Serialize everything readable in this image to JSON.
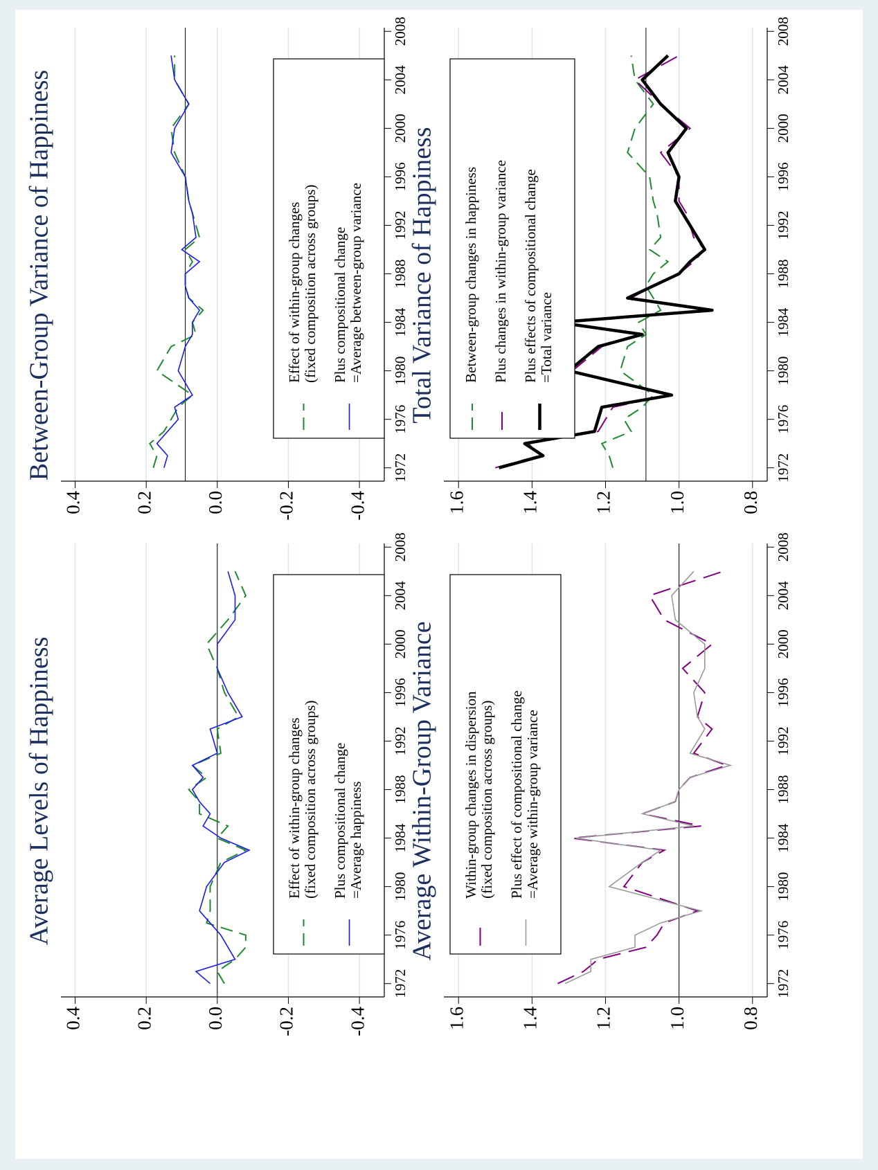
{
  "chart_data": [
    {
      "type": "line",
      "title": "Average Levels of Happiness",
      "x": [
        1972,
        1973,
        1974,
        1975,
        1976,
        1977,
        1978,
        1980,
        1982,
        1983,
        1984,
        1985,
        1986,
        1987,
        1988,
        1989,
        1990,
        1991,
        1993,
        1994,
        1996,
        1998,
        2000,
        2002,
        2004,
        2006
      ],
      "xlim": [
        1970.9,
        2008.3
      ],
      "xticks": [
        1972,
        1976,
        1980,
        1984,
        1988,
        1992,
        1996,
        2000,
        2004,
        2008
      ],
      "ylim": [
        -0.47,
        0.44
      ],
      "yticks": [
        0.4,
        0.2,
        {
          "value": 0,
          "label": "0.0"
        },
        -0.2,
        -0.4
      ],
      "grid": true,
      "hline": 0,
      "legend_position": "bottom",
      "series": [
        {
          "name": [
            "Effect of within-group changes",
            "(fixed composition across groups)"
          ],
          "color": "#1e8a2e",
          "line_style": "dashed",
          "values": [
            -0.02,
            0.0,
            -0.05,
            -0.08,
            -0.08,
            0.03,
            0.02,
            0.02,
            -0.01,
            -0.08,
            0.0,
            -0.03,
            0.05,
            0.05,
            0.08,
            0.03,
            0.07,
            -0.01,
            0.0,
            -0.06,
            -0.02,
            0.0,
            0.03,
            -0.03,
            -0.08,
            -0.05
          ]
        },
        {
          "name": [
            "Plus compositional change",
            "=Average happiness"
          ],
          "color": "#1a1aee",
          "line_style": "solid",
          "values": [
            0.02,
            0.06,
            -0.05,
            -0.03,
            -0.01,
            0.02,
            0.05,
            0.03,
            -0.02,
            -0.09,
            -0.01,
            0.04,
            0.02,
            0.05,
            0.07,
            0.04,
            0.07,
            0.0,
            0.02,
            -0.07,
            -0.03,
            0.0,
            0.0,
            -0.05,
            -0.05,
            -0.03
          ]
        }
      ]
    },
    {
      "type": "line",
      "title": "Between-Group Variance of Happiness",
      "x": [
        1972,
        1973,
        1974,
        1975,
        1976,
        1977,
        1978,
        1980,
        1982,
        1983,
        1984,
        1985,
        1986,
        1987,
        1988,
        1989,
        1990,
        1991,
        1993,
        1994,
        1996,
        1998,
        2000,
        2002,
        2004,
        2006
      ],
      "xlim": [
        1970.9,
        2008.3
      ],
      "xticks": [
        1972,
        1976,
        1980,
        1984,
        1988,
        1992,
        1996,
        2000,
        2004,
        2008
      ],
      "ylim": [
        -0.47,
        0.44
      ],
      "yticks": [
        0.4,
        0.2,
        {
          "value": 0,
          "label": "0.0"
        },
        -0.2,
        -0.4
      ],
      "grid": true,
      "hline": 0.09,
      "legend_position": "bottom",
      "series": [
        {
          "name": [
            "Effect of within-group changes",
            "(fixed composition across groups)"
          ],
          "color": "#1e8a2e",
          "line_style": "dashed",
          "values": [
            0.18,
            0.17,
            0.19,
            0.15,
            0.13,
            0.11,
            0.07,
            0.17,
            0.13,
            0.06,
            0.07,
            0.04,
            0.08,
            0.09,
            0.09,
            0.07,
            0.09,
            0.05,
            0.07,
            0.08,
            0.09,
            0.12,
            0.13,
            0.08,
            0.12,
            0.12
          ]
        },
        {
          "name": [
            "Plus compositional change",
            "=Average between-group variance"
          ],
          "color": "#1a1aee",
          "line_style": "solid",
          "values": [
            0.15,
            0.14,
            0.17,
            0.14,
            0.11,
            0.12,
            0.07,
            0.11,
            0.09,
            0.07,
            0.07,
            0.05,
            0.08,
            0.09,
            0.09,
            0.05,
            0.1,
            0.06,
            0.07,
            0.08,
            0.09,
            0.13,
            0.12,
            0.08,
            0.12,
            0.13
          ]
        }
      ]
    },
    {
      "type": "line",
      "title": "Average Within-Group Variance",
      "x": [
        1972,
        1973,
        1974,
        1975,
        1976,
        1977,
        1978,
        1980,
        1982,
        1983,
        1984,
        1985,
        1986,
        1987,
        1988,
        1989,
        1990,
        1991,
        1993,
        1994,
        1996,
        1998,
        2000,
        2002,
        2004,
        2006
      ],
      "xlim": [
        1970.9,
        2008.3
      ],
      "xticks": [
        1972,
        1976,
        1980,
        1984,
        1988,
        1992,
        1996,
        2000,
        2004,
        2008
      ],
      "ylim": [
        0.76,
        1.64
      ],
      "yticks": [
        1.6,
        1.4,
        1.2,
        {
          "value": 1,
          "label": "1.0"
        },
        0.8
      ],
      "grid": true,
      "hline": 1,
      "legend_position": "top",
      "series": [
        {
          "name": [
            "Within-group changes in dispersion",
            "(fixed composition across groups)"
          ],
          "color": "#800080",
          "line_style": "dashed",
          "values": [
            1.33,
            1.26,
            1.22,
            1.09,
            1.06,
            1.04,
            0.95,
            1.15,
            1.1,
            1.04,
            1.29,
            0.94,
            1.1,
            1.01,
            1.0,
            0.97,
            0.87,
            0.96,
            0.91,
            0.95,
            0.93,
            0.99,
            0.91,
            1.04,
            1.08,
            0.88
          ]
        },
        {
          "name": [
            "Plus effect of compositional change",
            "=Average within-group variance"
          ],
          "color": "#999999",
          "line_style": "solid",
          "values": [
            1.31,
            1.24,
            1.24,
            1.12,
            1.12,
            1.05,
            0.94,
            1.19,
            1.1,
            1.05,
            1.28,
            0.96,
            1.1,
            1.01,
            1.0,
            0.97,
            0.86,
            0.97,
            0.93,
            0.95,
            0.96,
            0.93,
            0.93,
            1.01,
            1.02,
            0.96
          ]
        }
      ]
    },
    {
      "type": "line",
      "title": "Total Variance of Happiness",
      "x": [
        1972,
        1973,
        1974,
        1975,
        1976,
        1977,
        1978,
        1980,
        1982,
        1983,
        1984,
        1985,
        1986,
        1987,
        1988,
        1989,
        1990,
        1991,
        1993,
        1994,
        1996,
        1998,
        2000,
        2002,
        2004,
        2006
      ],
      "xlim": [
        1970.9,
        2008.3
      ],
      "xticks": [
        1972,
        1976,
        1980,
        1984,
        1988,
        1992,
        1996,
        2000,
        2004,
        2008
      ],
      "ylim": [
        0.76,
        1.64
      ],
      "yticks": [
        1.6,
        1.4,
        1.2,
        {
          "value": 1,
          "label": "1.0"
        },
        0.8
      ],
      "grid": true,
      "hline": 1.09,
      "legend_position": "top",
      "series": [
        {
          "name": [
            "Between-group changes in happiness"
          ],
          "color": "#1e8a2e",
          "line_style": "dashed",
          "values": [
            1.18,
            1.19,
            1.21,
            1.13,
            1.15,
            1.1,
            1.07,
            1.16,
            1.14,
            1.09,
            1.11,
            1.05,
            1.07,
            1.09,
            1.07,
            1.03,
            1.08,
            1.05,
            1.06,
            1.07,
            1.08,
            1.14,
            1.12,
            1.07,
            1.12,
            1.13
          ]
        },
        {
          "name": [
            "Plus changes in within-group variance"
          ],
          "color": "#800080",
          "line_style": "dashed",
          "values": [
            1.5,
            1.38,
            1.41,
            1.22,
            1.2,
            1.18,
            1.03,
            1.29,
            1.21,
            1.1,
            1.33,
            0.92,
            1.13,
            1.07,
            1.0,
            0.96,
            0.93,
            0.96,
            0.98,
            1.0,
            1.0,
            1.05,
            0.97,
            1.05,
            1.12,
            1.0
          ]
        },
        {
          "name": [
            "Plus effects of compositional change",
            "=Total variance"
          ],
          "color": "#000000",
          "line_style": "thick",
          "values": [
            1.49,
            1.37,
            1.42,
            1.23,
            1.22,
            1.21,
            1.02,
            1.3,
            1.22,
            1.1,
            1.33,
            0.91,
            1.14,
            1.07,
            1.0,
            0.97,
            0.93,
            0.95,
            0.99,
            1.01,
            1.0,
            1.03,
            0.98,
            1.05,
            1.1,
            1.03
          ]
        }
      ]
    }
  ]
}
